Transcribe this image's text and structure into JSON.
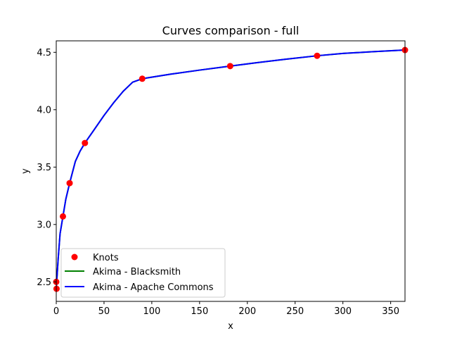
{
  "chart_data": {
    "type": "line",
    "title": "Curves comparison - full",
    "xlabel": "x",
    "ylabel": "y",
    "xlim": [
      0,
      365
    ],
    "ylim": [
      2.33,
      4.6
    ],
    "xticks": [
      0,
      50,
      100,
      150,
      200,
      250,
      300,
      350
    ],
    "yticks": [
      2.5,
      3.0,
      3.5,
      4.0,
      4.5
    ],
    "xtick_labels": [
      "0",
      "50",
      "100",
      "150",
      "200",
      "250",
      "300",
      "350"
    ],
    "ytick_labels": [
      "2.5",
      "3.0",
      "3.5",
      "4.0",
      "4.5"
    ],
    "grid": false,
    "legend_position": "lower-left",
    "knots": {
      "name": "Knots",
      "color": "#ff0000",
      "x": [
        0,
        0.3,
        7,
        14,
        30,
        90,
        182,
        273,
        365
      ],
      "y": [
        2.5,
        2.44,
        3.07,
        3.36,
        3.71,
        4.27,
        4.38,
        4.47,
        4.52
      ]
    },
    "series": [
      {
        "name": "Akima - Blacksmith",
        "color": "#008000",
        "x": [
          0,
          2,
          4,
          7,
          10,
          14,
          20,
          25,
          30,
          40,
          50,
          60,
          70,
          80,
          90,
          120,
          150,
          182,
          210,
          240,
          273,
          300,
          330,
          365
        ],
        "y": [
          2.44,
          2.7,
          2.92,
          3.07,
          3.22,
          3.36,
          3.55,
          3.64,
          3.71,
          3.83,
          3.95,
          4.06,
          4.16,
          4.24,
          4.27,
          4.31,
          4.345,
          4.38,
          4.41,
          4.44,
          4.47,
          4.49,
          4.505,
          4.52
        ]
      },
      {
        "name": "Akima - Apache Commons",
        "color": "#0000ff",
        "x": [
          0,
          2,
          4,
          7,
          10,
          14,
          20,
          25,
          30,
          40,
          50,
          60,
          70,
          80,
          90,
          120,
          150,
          182,
          210,
          240,
          273,
          300,
          330,
          365
        ],
        "y": [
          2.44,
          2.7,
          2.92,
          3.07,
          3.22,
          3.36,
          3.55,
          3.64,
          3.71,
          3.83,
          3.95,
          4.06,
          4.16,
          4.24,
          4.27,
          4.31,
          4.345,
          4.38,
          4.41,
          4.44,
          4.47,
          4.49,
          4.505,
          4.52
        ]
      }
    ]
  }
}
